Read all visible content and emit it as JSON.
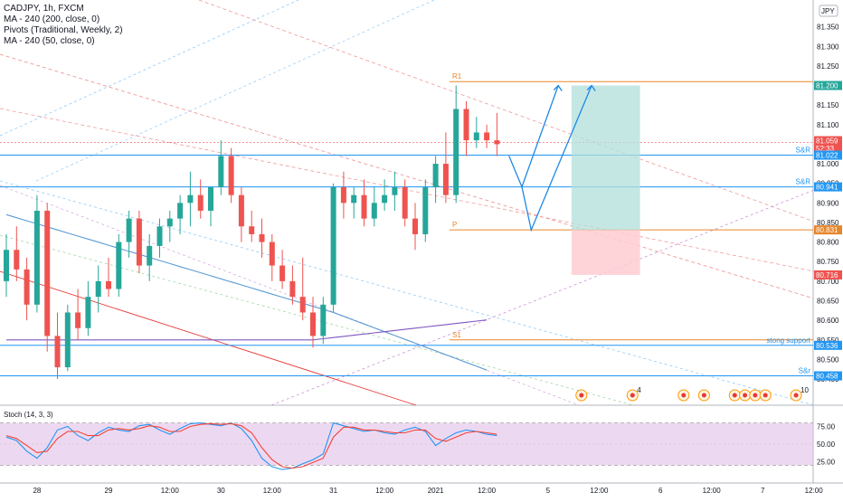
{
  "legend": {
    "symbol": "CADJPY, 1h, FXCM",
    "ma200": "MA - 240 (200, close, 0)",
    "pivots": "Pivots (Traditional, Weekly, 2)",
    "ma50": "MA - 240 (50, close, 0)"
  },
  "currency": "JPY",
  "stoch_label": "Stoch (14, 3, 3)",
  "colors": {
    "up": "#26a69a",
    "down": "#ef5350",
    "pivot": "#e8862a",
    "hline": "#2196f3",
    "ma_blue": "#5b9bd5",
    "ma_purple": "#7e57c2",
    "stoch_bg": "#e1bee7",
    "k_line": "#2196f3",
    "d_line": "#f44336",
    "target_zone": "#b2dfdb",
    "stop_zone": "#ffcdd2"
  },
  "chart_data": [
    {
      "type": "candlestick",
      "title": "CADJPY, 1h, FXCM",
      "ylim": [
        80.42,
        81.4
      ],
      "price_ticks": [
        "81.350",
        "81.300",
        "81.250",
        "81.200",
        "81.150",
        "81.100",
        "81.050",
        "81.000",
        "80.950",
        "80.900",
        "80.850",
        "80.800",
        "80.750",
        "80.700",
        "80.650",
        "80.600",
        "80.550",
        "80.500",
        "80.450"
      ],
      "x_ticks": [
        {
          "label": "28",
          "i": 3
        },
        {
          "label": "29",
          "i": 10
        },
        {
          "label": "12:00",
          "i": 16
        },
        {
          "label": "30",
          "i": 21
        },
        {
          "label": "12:00",
          "i": 26
        },
        {
          "label": "31",
          "i": 32
        },
        {
          "label": "12:00",
          "i": 37
        },
        {
          "label": "2021",
          "i": 42
        },
        {
          "label": "12:00",
          "i": 47
        },
        {
          "label": "5",
          "i": 53
        },
        {
          "label": "12:00",
          "i": 58
        },
        {
          "label": "6",
          "i": 64
        },
        {
          "label": "12:00",
          "i": 69
        },
        {
          "label": "7",
          "i": 74
        },
        {
          "label": "12:00",
          "i": 79
        }
      ],
      "candles": [
        [
          80.7,
          80.82,
          80.66,
          80.78
        ],
        [
          80.78,
          80.84,
          80.7,
          80.73
        ],
        [
          80.73,
          80.76,
          80.6,
          80.64
        ],
        [
          80.64,
          80.92,
          80.62,
          80.88
        ],
        [
          80.88,
          80.9,
          80.52,
          80.56
        ],
        [
          80.56,
          80.62,
          80.45,
          80.48
        ],
        [
          80.48,
          80.64,
          80.47,
          80.62
        ],
        [
          80.62,
          80.68,
          80.55,
          80.58
        ],
        [
          80.58,
          80.7,
          80.56,
          80.66
        ],
        [
          80.66,
          80.74,
          80.62,
          80.7
        ],
        [
          80.7,
          80.76,
          80.66,
          80.68
        ],
        [
          80.68,
          80.82,
          80.66,
          80.8
        ],
        [
          80.8,
          80.88,
          80.76,
          80.86
        ],
        [
          80.86,
          80.88,
          80.72,
          80.74
        ],
        [
          80.74,
          80.82,
          80.7,
          80.79
        ],
        [
          80.79,
          80.86,
          80.76,
          80.84
        ],
        [
          80.84,
          80.88,
          80.8,
          80.86
        ],
        [
          80.86,
          80.92,
          80.82,
          80.9
        ],
        [
          80.9,
          80.98,
          80.84,
          80.92
        ],
        [
          80.92,
          80.96,
          80.86,
          80.88
        ],
        [
          80.88,
          80.94,
          80.84,
          80.94
        ],
        [
          80.94,
          81.06,
          80.92,
          81.02
        ],
        [
          81.02,
          81.04,
          80.9,
          80.92
        ],
        [
          80.92,
          80.94,
          80.8,
          80.84
        ],
        [
          80.84,
          80.88,
          80.8,
          80.82
        ],
        [
          80.82,
          80.86,
          80.76,
          80.8
        ],
        [
          80.8,
          80.82,
          80.7,
          80.74
        ],
        [
          80.74,
          80.78,
          80.68,
          80.7
        ],
        [
          80.7,
          80.74,
          80.64,
          80.66
        ],
        [
          80.66,
          80.76,
          80.6,
          80.62
        ],
        [
          80.62,
          80.66,
          80.53,
          80.56
        ],
        [
          80.56,
          80.66,
          80.54,
          80.64
        ],
        [
          80.64,
          80.95,
          80.62,
          80.94
        ],
        [
          80.94,
          80.98,
          80.86,
          80.9
        ],
        [
          80.9,
          80.94,
          80.86,
          80.92
        ],
        [
          80.92,
          80.96,
          80.84,
          80.86
        ],
        [
          80.86,
          80.94,
          80.84,
          80.9
        ],
        [
          80.9,
          80.96,
          80.88,
          80.92
        ],
        [
          80.92,
          80.98,
          80.88,
          80.94
        ],
        [
          80.94,
          80.96,
          80.84,
          80.86
        ],
        [
          80.86,
          80.9,
          80.78,
          80.82
        ],
        [
          80.82,
          80.96,
          80.8,
          80.94
        ],
        [
          80.94,
          81.02,
          80.9,
          81.0
        ],
        [
          81.0,
          81.08,
          80.9,
          80.92
        ],
        [
          80.92,
          81.2,
          80.9,
          81.14
        ],
        [
          81.14,
          81.16,
          81.02,
          81.06
        ],
        [
          81.06,
          81.12,
          81.04,
          81.08
        ],
        [
          81.08,
          81.1,
          81.04,
          81.06
        ],
        [
          81.06,
          81.13,
          81.02,
          81.05
        ]
      ],
      "levels": [
        {
          "label": "R1",
          "value": 81.21,
          "style": "pivot"
        },
        {
          "label": "S&R",
          "value": 81.022,
          "style": "hline"
        },
        {
          "label": "S&R",
          "value": 80.941,
          "style": "hline"
        },
        {
          "label": "P",
          "value": 80.831,
          "style": "pivot"
        },
        {
          "label": "S1",
          "value": 80.55,
          "style": "pivot"
        },
        {
          "label": "stong support",
          "value": 80.536,
          "style": "hline"
        },
        {
          "label": "S&r",
          "value": 80.458,
          "style": "hline"
        }
      ],
      "price_badges": [
        {
          "value": "81.200",
          "color": "#26a69a"
        },
        {
          "value": "81.059",
          "color": "#ef5350"
        },
        {
          "value": "52:33",
          "color": "#ef5350"
        },
        {
          "value": "81.022",
          "color": "#2196f3"
        },
        {
          "value": "80.941",
          "color": "#2196f3"
        },
        {
          "value": "80.831",
          "color": "#e8862a"
        },
        {
          "value": "80.716",
          "color": "#ef5350"
        },
        {
          "value": "80.536",
          "color": "#2196f3"
        },
        {
          "value": "80.458",
          "color": "#2196f3"
        }
      ],
      "badge_prices": [
        81.2,
        81.059,
        81.04,
        81.022,
        80.941,
        80.831,
        80.716,
        80.536,
        80.458
      ],
      "position": {
        "entry": 80.831,
        "target": 81.2,
        "stop": 80.716,
        "i_start": 56,
        "i_end": 62
      },
      "event_count_labels": [
        "4",
        "10"
      ]
    },
    {
      "type": "line",
      "title": "Stoch (14, 3, 3)",
      "ylim": [
        0,
        100
      ],
      "y_ticks": [
        "75.00",
        "50.00",
        "25.00"
      ],
      "bands": [
        80,
        20
      ],
      "k": [
        60,
        55,
        40,
        30,
        45,
        70,
        75,
        62,
        55,
        66,
        74,
        70,
        68,
        76,
        78,
        70,
        64,
        72,
        79,
        80,
        78,
        76,
        80,
        72,
        55,
        30,
        18,
        14,
        16,
        22,
        28,
        36,
        80,
        76,
        72,
        68,
        70,
        66,
        64,
        70,
        74,
        68,
        48,
        58,
        66,
        70,
        68,
        64,
        62
      ],
      "d": [
        62,
        58,
        48,
        38,
        40,
        58,
        68,
        68,
        62,
        62,
        70,
        72,
        70,
        72,
        76,
        74,
        68,
        68,
        75,
        78,
        79,
        78,
        79,
        76,
        66,
        45,
        28,
        18,
        16,
        18,
        24,
        30,
        60,
        74,
        74,
        70,
        70,
        68,
        66,
        66,
        70,
        70,
        58,
        54,
        60,
        66,
        68,
        66,
        64
      ]
    }
  ]
}
